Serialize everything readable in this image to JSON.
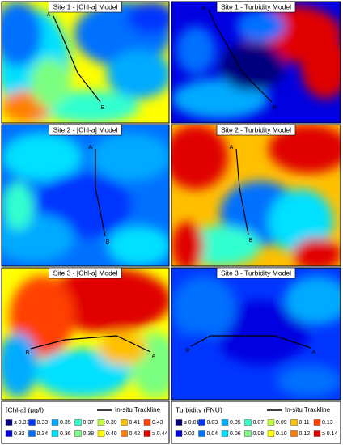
{
  "panels": [
    {
      "title": "Site 1 - [Chl-a] Model",
      "start": "A",
      "end": "B"
    },
    {
      "title": "Site 1 - Turbidity Model",
      "start": "A",
      "end": "B"
    },
    {
      "title": "Site 2 - [Chl-a] Model",
      "start": "A",
      "end": "B"
    },
    {
      "title": "Site 2 - Turbidity Model",
      "start": "A",
      "end": "B"
    },
    {
      "title": "Site 3 - [Chl-a] Model",
      "start": "A",
      "end": "B"
    },
    {
      "title": "Site 3 - Turbidity Model",
      "start": "A",
      "end": "B"
    }
  ],
  "legends": [
    {
      "title": "[Chl-a] (µg/l)",
      "trackline": "In-situ Trackline",
      "items": [
        "≤ 0.31",
        "0.32",
        "0.33",
        "0.34",
        "0.35",
        "0.36",
        "0.37",
        "0.38",
        "0.39",
        "0.40",
        "0.41",
        "0.42",
        "0.43",
        "≥ 0.44"
      ]
    },
    {
      "title": "Turbidity (FNU)",
      "trackline": "In-situ Trackline",
      "items": [
        "≤ 0.01",
        "0.02",
        "0.03",
        "0.04",
        "0.05",
        "0.06",
        "0.07",
        "0.08",
        "0.09",
        "0.10",
        "0.11",
        "0.12",
        "0.13",
        "≥ 0.14"
      ]
    }
  ],
  "colors": [
    "#00007f",
    "#0000e0",
    "#0036ff",
    "#0070ff",
    "#00aaff",
    "#00e0ff",
    "#30ffd0",
    "#7aff80",
    "#c0ff40",
    "#ffff00",
    "#ffc000",
    "#ff8000",
    "#ff4000",
    "#e00000"
  ]
}
